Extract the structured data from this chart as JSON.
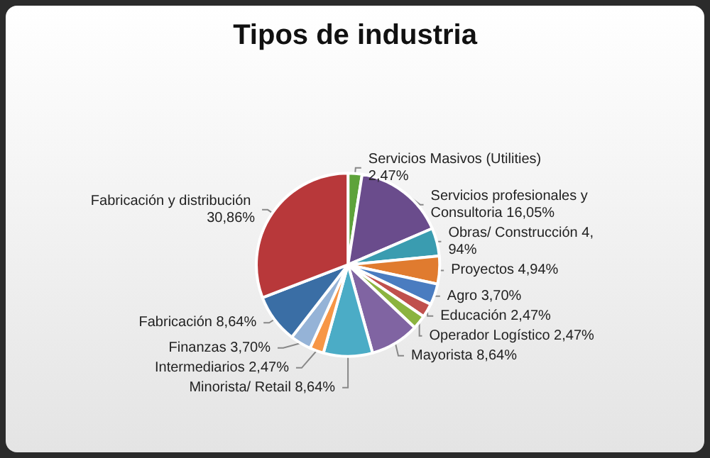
{
  "chart_data": {
    "type": "pie",
    "title": "Tipos de industria",
    "categories": [
      "Servicios Masivos (Utilities)",
      "Servicios profesionales y Consultoria",
      "Obras/ Construcción",
      "Proyectos",
      "Agro",
      "Educación",
      "Operador Logístico",
      "Mayorista",
      "Minorista/ Retail",
      "Intermediarios",
      "Finanzas",
      "Fabricación",
      "Fabricación y distribución"
    ],
    "values": [
      2.47,
      16.05,
      4.94,
      4.94,
      3.7,
      2.47,
      2.47,
      8.64,
      8.64,
      2.47,
      3.7,
      8.64,
      30.86
    ],
    "value_labels": [
      "2,47%",
      "16,05%",
      "4,94%",
      "4,94%",
      "3,70%",
      "2,47%",
      "2,47%",
      "8,64%",
      "8,64%",
      "2,47%",
      "3,70%",
      "8,64%",
      "30,86%"
    ],
    "colors": [
      "#5ea33a",
      "#6a4c8c",
      "#3a9cb0",
      "#e07b2f",
      "#4a7cc0",
      "#c0504d",
      "#8bb33f",
      "#8064a2",
      "#4bacc6",
      "#f79646",
      "#95b3d7",
      "#3a6ea5",
      "#b8383a"
    ],
    "legend": false
  }
}
